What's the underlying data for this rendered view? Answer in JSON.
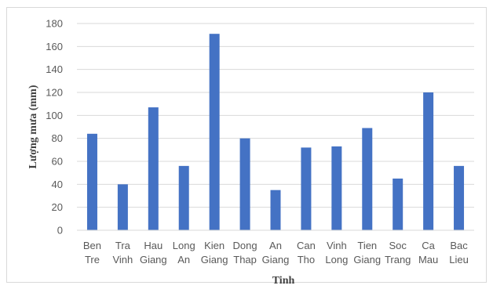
{
  "chart_data": {
    "type": "bar",
    "title": "",
    "xlabel": "Tinh",
    "ylabel": "Lượng mưa (mm)",
    "ylim": [
      0,
      180
    ],
    "yticks": [
      0,
      20,
      40,
      60,
      80,
      100,
      120,
      140,
      160,
      180
    ],
    "grid": true,
    "legend": "none",
    "bar_color": "#4472c4",
    "categories": [
      [
        "Ben",
        "Tre"
      ],
      [
        "Tra",
        "Vinh"
      ],
      [
        "Hau",
        "Giang"
      ],
      [
        "Long",
        "An"
      ],
      [
        "Kien",
        "Giang"
      ],
      [
        "Dong",
        "Thap"
      ],
      [
        "An",
        "Giang"
      ],
      [
        "Can",
        "Tho"
      ],
      [
        "Vinh",
        "Long"
      ],
      [
        "Tien",
        "Giang"
      ],
      [
        "Soc",
        "Trang"
      ],
      [
        "Ca",
        "Mau"
      ],
      [
        "Bac",
        "Lieu"
      ]
    ],
    "values": [
      84,
      40,
      107,
      56,
      171,
      80,
      35,
      72,
      73,
      89,
      45,
      120,
      56
    ]
  }
}
